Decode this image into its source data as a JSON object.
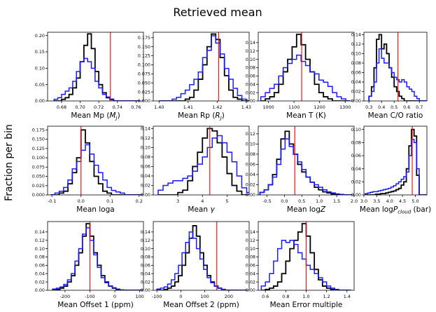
{
  "figure": {
    "title": "Retrieved mean",
    "ylabel": "Fraction per bin"
  },
  "colors": {
    "series_a": "#000000",
    "series_b": "#1a1aff",
    "reference": "#e31a1c"
  },
  "chart_data": [
    {
      "type": "histogram",
      "xlabel_pre": "Mean Mp (",
      "xlabel_sym": "M",
      "xlabel_sub": "J",
      "xlabel_post": ")",
      "xlim": [
        0.665,
        0.768
      ],
      "ylim": [
        0,
        0.21
      ],
      "xticks": [
        0.68,
        0.7,
        0.72,
        0.74,
        0.76
      ],
      "xticklabels": [
        "0.68",
        "0.70",
        "0.72",
        "0.74",
        "0.76"
      ],
      "yticks": [
        0,
        0.05,
        0.1,
        0.15,
        0.2
      ],
      "yticklabels": [
        "0.00",
        "0.05",
        "0.10",
        "0.15",
        "0.20"
      ],
      "reference": 0.7325,
      "series": [
        {
          "x0": 0.672,
          "dx": 0.004,
          "values": [
            0,
            0,
            0.005,
            0.01,
            0.02,
            0.04,
            0.07,
            0.12,
            0.17,
            0.205,
            0.16,
            0.09,
            0.05,
            0.025,
            0.01,
            0.004,
            0,
            0,
            0,
            0,
            0,
            0,
            0
          ]
        },
        {
          "x0": 0.672,
          "dx": 0.004,
          "values": [
            0.005,
            0.01,
            0.02,
            0.03,
            0.04,
            0.06,
            0.09,
            0.12,
            0.13,
            0.12,
            0.1,
            0.06,
            0.04,
            0.02,
            0.012,
            0.006,
            0,
            0,
            0,
            0,
            0,
            0,
            0
          ]
        }
      ]
    },
    {
      "type": "histogram",
      "xlabel_pre": "Mean Rp (",
      "xlabel_sym": "R",
      "xlabel_sub": "J",
      "xlabel_post": ")",
      "xlim": [
        1.398,
        1.431
      ],
      "ylim": [
        0,
        0.19
      ],
      "xticks": [
        1.4,
        1.41,
        1.42,
        1.43
      ],
      "xticklabels": [
        "1.40",
        "1.41",
        "1.42",
        "1.43"
      ],
      "yticks": [
        0,
        0.025,
        0.05,
        0.075,
        0.1,
        0.125,
        0.15,
        0.175
      ],
      "yticklabels": [
        "0.000",
        "0.025",
        "0.050",
        "0.075",
        "0.100",
        "0.125",
        "0.150",
        "0.175"
      ],
      "reference": 1.4205,
      "series": [
        {
          "x0": 1.4,
          "dx": 0.0015,
          "values": [
            0,
            0,
            0,
            0,
            0,
            0,
            0.005,
            0.01,
            0.03,
            0.06,
            0.1,
            0.15,
            0.185,
            0.17,
            0.12,
            0.07,
            0.03,
            0.01,
            0.005,
            0,
            0,
            0
          ]
        },
        {
          "x0": 1.4,
          "dx": 0.0015,
          "values": [
            0,
            0,
            0,
            0.005,
            0.01,
            0.02,
            0.03,
            0.045,
            0.06,
            0.08,
            0.12,
            0.14,
            0.18,
            0.16,
            0.13,
            0.09,
            0.06,
            0.035,
            0.015,
            0.005,
            0,
            0
          ]
        }
      ]
    },
    {
      "type": "histogram",
      "xlabel_pre": "Mean T (K)",
      "xlabel_sym": "",
      "xlabel_sub": "",
      "xlabel_post": "",
      "xlim": [
        960,
        1335
      ],
      "ylim": [
        0,
        0.165
      ],
      "xticks": [
        1000,
        1100,
        1200,
        1300
      ],
      "xticklabels": [
        "1000",
        "1100",
        "1200",
        "1300"
      ],
      "yticks": [
        0,
        0.02,
        0.04,
        0.06,
        0.08,
        0.1,
        0.12,
        0.14
      ],
      "yticklabels": [
        "0.00",
        "0.02",
        "0.04",
        "0.06",
        "0.08",
        "0.10",
        "0.12",
        "0.14"
      ],
      "reference": 1130,
      "series": [
        {
          "x0": 970,
          "dx": 17.5,
          "values": [
            0,
            0.005,
            0.01,
            0.02,
            0.04,
            0.07,
            0.1,
            0.13,
            0.16,
            0.135,
            0.1,
            0.07,
            0.04,
            0.02,
            0.01,
            0.005,
            0,
            0,
            0,
            0
          ]
        },
        {
          "x0": 970,
          "dx": 17.5,
          "values": [
            0.01,
            0.02,
            0.03,
            0.04,
            0.06,
            0.08,
            0.09,
            0.1,
            0.11,
            0.095,
            0.085,
            0.07,
            0.065,
            0.05,
            0.045,
            0.035,
            0.02,
            0.01,
            0.005,
            0
          ]
        }
      ]
    },
    {
      "type": "histogram",
      "xlabel_pre": "Mean C/O ratio",
      "xlabel_sym": "",
      "xlabel_sub": "",
      "xlabel_post": "",
      "xlim": [
        0.26,
        0.76
      ],
      "ylim": [
        0,
        0.145
      ],
      "xticks": [
        0.3,
        0.4,
        0.5,
        0.6,
        0.7
      ],
      "xticklabels": [
        "0.3",
        "0.4",
        "0.5",
        "0.6",
        "0.7"
      ],
      "yticks": [
        0,
        0.02,
        0.04,
        0.06,
        0.08,
        0.1,
        0.12,
        0.14
      ],
      "yticklabels": [
        "0.00",
        "0.02",
        "0.04",
        "0.06",
        "0.08",
        "0.10",
        "0.12",
        "0.14"
      ],
      "reference": 0.53,
      "series": [
        {
          "x0": 0.3,
          "dx": 0.02,
          "values": [
            0.01,
            0.03,
            0.07,
            0.13,
            0.14,
            0.11,
            0.12,
            0.1,
            0.07,
            0.05,
            0.03,
            0.02,
            0.01,
            0.005,
            0,
            0,
            0,
            0,
            0,
            0,
            0,
            0,
            0
          ]
        },
        {
          "x0": 0.3,
          "dx": 0.02,
          "values": [
            0.01,
            0.02,
            0.04,
            0.08,
            0.11,
            0.09,
            0.08,
            0.08,
            0.07,
            0.06,
            0.05,
            0.045,
            0.04,
            0.045,
            0.04,
            0.03,
            0.025,
            0.02,
            0.01,
            0.005,
            0,
            0,
            0
          ]
        }
      ]
    },
    {
      "type": "histogram",
      "xlabel_pre": "Mean loga",
      "xlabel_sym": "",
      "xlabel_sub": "",
      "xlabel_post": "",
      "xlim": [
        -0.115,
        0.215
      ],
      "ylim": [
        0,
        0.185
      ],
      "xticks": [
        -0.1,
        0.0,
        0.1,
        0.2
      ],
      "xticklabels": [
        "-0.1",
        "0.0",
        "0.1",
        "0.2"
      ],
      "yticks": [
        0,
        0.025,
        0.05,
        0.075,
        0.1,
        0.125,
        0.15,
        0.175
      ],
      "yticklabels": [
        "0.000",
        "0.025",
        "0.050",
        "0.075",
        "0.100",
        "0.125",
        "0.150",
        "0.175"
      ],
      "reference": 0.0,
      "series": [
        {
          "x0": -0.105,
          "dx": 0.015,
          "values": [
            0,
            0,
            0.005,
            0.01,
            0.03,
            0.06,
            0.1,
            0.175,
            0.14,
            0.09,
            0.05,
            0.03,
            0.01,
            0.005,
            0,
            0,
            0,
            0,
            0,
            0,
            0
          ]
        },
        {
          "x0": -0.105,
          "dx": 0.015,
          "values": [
            0,
            0.005,
            0.01,
            0.02,
            0.04,
            0.07,
            0.09,
            0.12,
            0.135,
            0.11,
            0.08,
            0.06,
            0.04,
            0.02,
            0.012,
            0.008,
            0.005,
            0,
            0,
            0,
            0
          ]
        }
      ]
    },
    {
      "type": "histogram",
      "xlabel_pre": "Mean ",
      "xlabel_sym": "γ",
      "xlabel_sub": "",
      "xlabel_post": "",
      "xlim": [
        2.0,
        5.9
      ],
      "ylim": [
        0,
        0.145
      ],
      "xticks": [
        3,
        4,
        5
      ],
      "xticklabels": [
        "3",
        "4",
        "5"
      ],
      "yticks": [
        0,
        0.02,
        0.04,
        0.06,
        0.08,
        0.1,
        0.12,
        0.14
      ],
      "yticklabels": [
        "0.00",
        "0.02",
        "0.04",
        "0.06",
        "0.08",
        "0.10",
        "0.12",
        "0.14"
      ],
      "reference": 4.3,
      "series": [
        {
          "x0": 2.2,
          "dx": 0.2,
          "values": [
            0,
            0,
            0,
            0,
            0.005,
            0.01,
            0.03,
            0.06,
            0.09,
            0.12,
            0.14,
            0.135,
            0.11,
            0.08,
            0.045,
            0.02,
            0.008,
            0,
            0
          ]
        },
        {
          "x0": 2.2,
          "dx": 0.2,
          "values": [
            0.01,
            0.02,
            0.025,
            0.03,
            0.03,
            0.035,
            0.04,
            0.05,
            0.065,
            0.08,
            0.1,
            0.12,
            0.125,
            0.11,
            0.09,
            0.07,
            0.04,
            0.015,
            0.005
          ]
        }
      ]
    },
    {
      "type": "histogram",
      "xlabel_pre": "Mean log",
      "xlabel_sym": "Z",
      "xlabel_sub": "",
      "xlabel_post": "",
      "xlim": [
        -0.75,
        2.0
      ],
      "ylim": [
        0,
        0.135
      ],
      "xticks": [
        -0.5,
        0.0,
        0.5,
        1.0,
        1.5,
        2.0
      ],
      "xticklabels": [
        "-0.5",
        "0.0",
        "0.5",
        "1.0",
        "1.5",
        "2.0"
      ],
      "yticks": [
        0,
        0.02,
        0.04,
        0.06,
        0.08,
        0.1,
        0.12
      ],
      "yticklabels": [
        "0.00",
        "0.02",
        "0.04",
        "0.06",
        "0.08",
        "0.10",
        "0.12"
      ],
      "reference": 0.3,
      "series": [
        {
          "x0": -0.7,
          "dx": 0.12,
          "values": [
            0.005,
            0.01,
            0.02,
            0.04,
            0.07,
            0.11,
            0.125,
            0.1,
            0.08,
            0.06,
            0.045,
            0.035,
            0.025,
            0.015,
            0.01,
            0.006,
            0.004,
            0.002,
            0.001,
            0,
            0,
            0
          ]
        },
        {
          "x0": -0.7,
          "dx": 0.12,
          "values": [
            0.005,
            0.01,
            0.02,
            0.035,
            0.06,
            0.09,
            0.11,
            0.095,
            0.08,
            0.065,
            0.05,
            0.035,
            0.025,
            0.02,
            0.015,
            0.01,
            0.006,
            0.004,
            0.002,
            0.001,
            0,
            0
          ]
        }
      ]
    },
    {
      "type": "histogram",
      "xlabel_pre": "Mean log",
      "xlabel_sym": "P",
      "xlabel_sub": "cloud",
      "xlabel_post": " (bar)",
      "xlim": [
        3.0,
        5.45
      ],
      "ylim": [
        0,
        0.105
      ],
      "xticks": [
        3.0,
        3.5,
        4.0,
        4.5,
        5.0
      ],
      "xticklabels": [
        "3.0",
        "3.5",
        "4.0",
        "4.5",
        "5.0"
      ],
      "yticks": [
        0,
        0.02,
        0.04,
        0.06,
        0.08,
        0.1
      ],
      "yticklabels": [
        "0.00",
        "0.02",
        "0.04",
        "0.06",
        "0.08",
        "0.10"
      ],
      "reference": 4.88,
      "series": [
        {
          "x0": 3.05,
          "dx": 0.1,
          "values": [
            0,
            0,
            0,
            0,
            0.001,
            0.001,
            0.002,
            0.002,
            0.003,
            0.004,
            0.005,
            0.006,
            0.008,
            0.01,
            0.015,
            0.02,
            0.04,
            0.075,
            0.1,
            0.09,
            0.03,
            0,
            0,
            0
          ]
        },
        {
          "x0": 3.05,
          "dx": 0.1,
          "values": [
            0.002,
            0.003,
            0.004,
            0.005,
            0.005,
            0.006,
            0.007,
            0.008,
            0.009,
            0.01,
            0.012,
            0.014,
            0.017,
            0.02,
            0.024,
            0.028,
            0.035,
            0.06,
            0.085,
            0.08,
            0.04,
            0,
            0,
            0
          ]
        }
      ]
    },
    {
      "type": "histogram",
      "xlabel_pre": "Mean Offset 1 (ppm)",
      "xlabel_sym": "",
      "xlabel_sub": "",
      "xlabel_post": "",
      "xlim": [
        -270,
        115
      ],
      "ylim": [
        0,
        0.165
      ],
      "xticks": [
        -200,
        -100,
        0,
        100
      ],
      "xticklabels": [
        "-200",
        "-100",
        "0",
        "100"
      ],
      "yticks": [
        0,
        0.02,
        0.04,
        0.06,
        0.08,
        0.1,
        0.12,
        0.14
      ],
      "yticklabels": [
        "0.00",
        "0.02",
        "0.04",
        "0.06",
        "0.08",
        "0.10",
        "0.12",
        "0.14"
      ],
      "reference": -100,
      "series": [
        {
          "x0": -250,
          "dx": 15,
          "values": [
            0,
            0.002,
            0.005,
            0.01,
            0.02,
            0.035,
            0.06,
            0.09,
            0.13,
            0.16,
            0.13,
            0.09,
            0.06,
            0.035,
            0.02,
            0.01,
            0.005,
            0.002,
            0,
            0,
            0,
            0,
            0,
            0,
            0
          ]
        },
        {
          "x0": -250,
          "dx": 15,
          "values": [
            0.003,
            0.005,
            0.008,
            0.014,
            0.025,
            0.04,
            0.07,
            0.1,
            0.135,
            0.15,
            0.12,
            0.085,
            0.055,
            0.03,
            0.018,
            0.01,
            0.006,
            0.003,
            0.001,
            0,
            0,
            0,
            0,
            0,
            0
          ]
        }
      ]
    },
    {
      "type": "histogram",
      "xlabel_pre": "Mean Offset 2 (ppm)",
      "xlabel_sym": "",
      "xlabel_sub": "",
      "xlabel_post": "",
      "xlim": [
        -115,
        285
      ],
      "ylim": [
        0,
        0.165
      ],
      "xticks": [
        -100,
        0,
        100,
        200
      ],
      "xticklabels": [
        "-100",
        "0",
        "100",
        "200"
      ],
      "yticks": [
        0,
        0.02,
        0.04,
        0.06,
        0.08,
        0.1,
        0.12,
        0.14
      ],
      "yticklabels": [
        "0.00",
        "0.02",
        "0.04",
        "0.06",
        "0.08",
        "0.10",
        "0.12",
        "0.14"
      ],
      "reference": 150,
      "series": [
        {
          "x0": -100,
          "dx": 15,
          "values": [
            0,
            0,
            0.002,
            0.005,
            0.01,
            0.02,
            0.035,
            0.06,
            0.09,
            0.125,
            0.155,
            0.13,
            0.09,
            0.06,
            0.035,
            0.02,
            0.01,
            0.005,
            0.002,
            0,
            0,
            0,
            0,
            0,
            0
          ]
        },
        {
          "x0": -100,
          "dx": 15,
          "values": [
            0.003,
            0.005,
            0.008,
            0.015,
            0.025,
            0.04,
            0.06,
            0.09,
            0.115,
            0.14,
            0.125,
            0.1,
            0.075,
            0.05,
            0.03,
            0.018,
            0.01,
            0.005,
            0.002,
            0,
            0,
            0,
            0,
            0,
            0
          ]
        }
      ]
    },
    {
      "type": "histogram",
      "xlabel_pre": "Mean Error multiple",
      "xlabel_sym": "",
      "xlabel_sub": "",
      "xlabel_post": "",
      "xlim": [
        0.53,
        1.47
      ],
      "ylim": [
        0,
        0.165
      ],
      "xticks": [
        0.6,
        0.8,
        1.0,
        1.2,
        1.4
      ],
      "xticklabels": [
        "0.6",
        "0.8",
        "1.0",
        "1.2",
        "1.4"
      ],
      "yticks": [
        0,
        0.02,
        0.04,
        0.06,
        0.08,
        0.1,
        0.12,
        0.14
      ],
      "yticklabels": [
        "0.00",
        "0.02",
        "0.04",
        "0.06",
        "0.08",
        "0.10",
        "0.12",
        "0.14"
      ],
      "reference": 1.0,
      "series": [
        {
          "x0": 0.56,
          "dx": 0.04,
          "values": [
            0,
            0.002,
            0.005,
            0.01,
            0.02,
            0.04,
            0.07,
            0.1,
            0.12,
            0.14,
            0.16,
            0.13,
            0.09,
            0.05,
            0.025,
            0.01,
            0.005,
            0.002,
            0,
            0,
            0,
            0
          ]
        },
        {
          "x0": 0.56,
          "dx": 0.04,
          "values": [
            0.01,
            0.02,
            0.04,
            0.07,
            0.1,
            0.12,
            0.115,
            0.12,
            0.11,
            0.09,
            0.075,
            0.06,
            0.05,
            0.04,
            0.03,
            0.02,
            0.01,
            0.005,
            0.002,
            0,
            0,
            0
          ]
        }
      ]
    }
  ]
}
